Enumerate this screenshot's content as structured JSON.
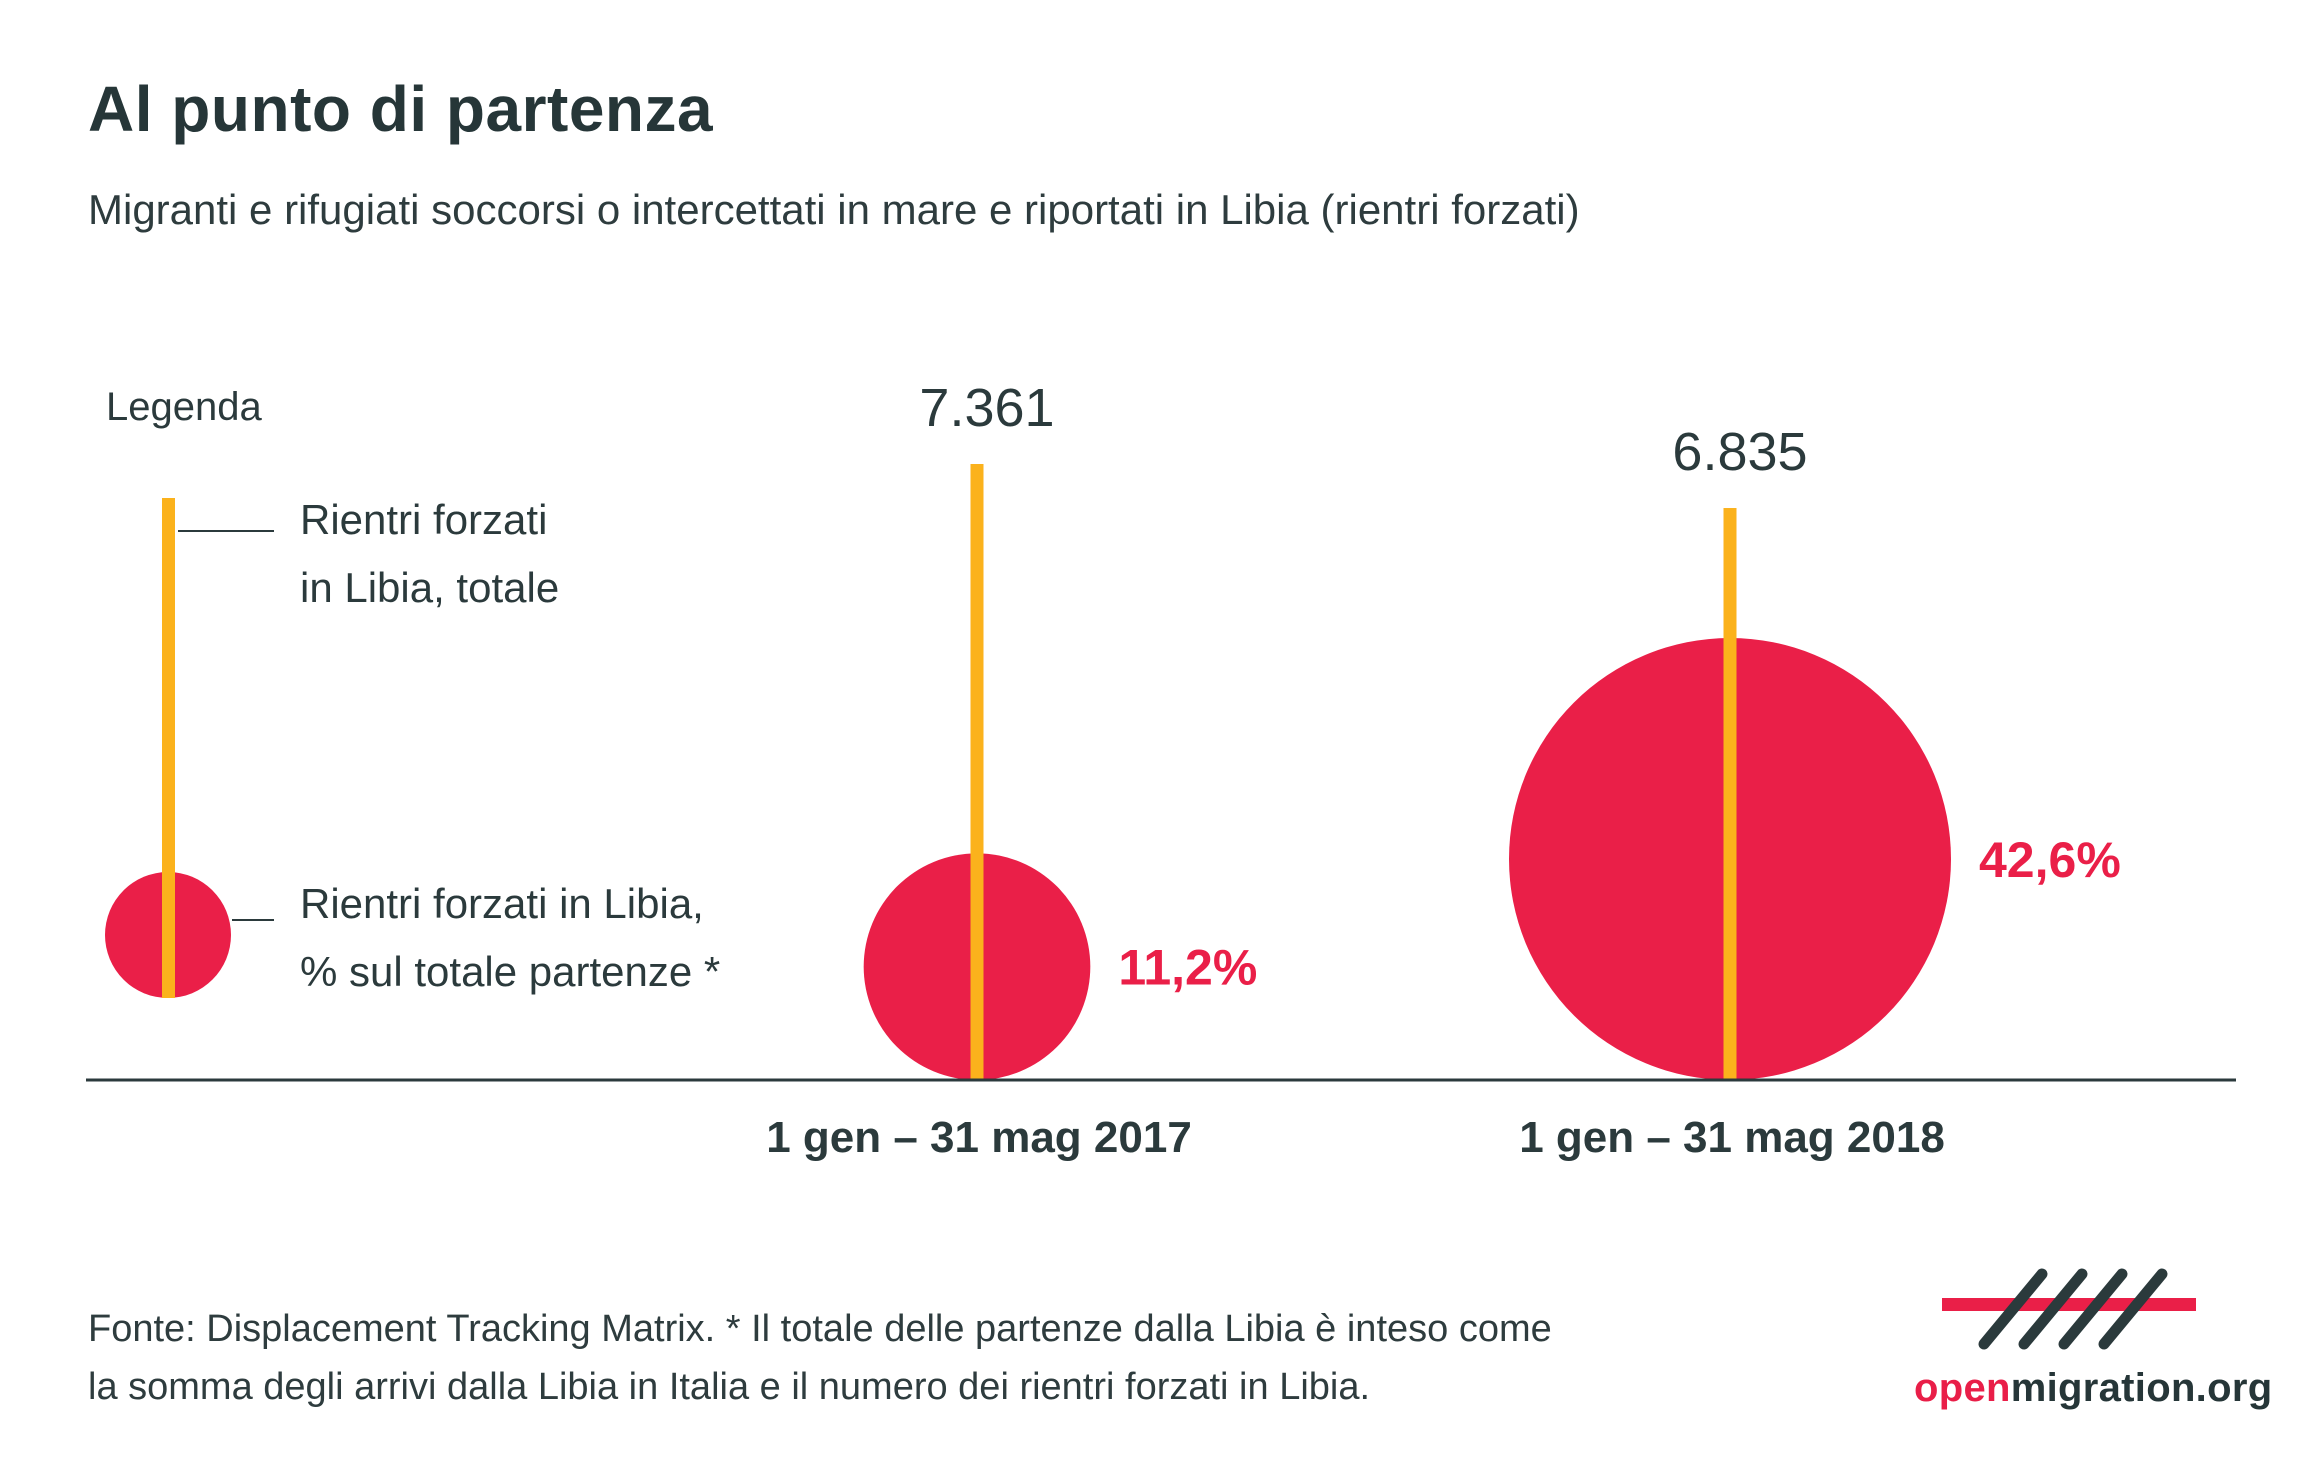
{
  "title": "Al punto di partenza",
  "subtitle": "Migranti e rifugiati soccorsi o intercettati in mare e riportati in Libia (rientri forzati)",
  "legend": {
    "heading": "Legenda",
    "line_label": [
      "Rientri forzati",
      "in Libia, totale"
    ],
    "circle_label": [
      "Rientri forzati in Libia,",
      "% sul totale partenze *"
    ]
  },
  "footer": {
    "lines": [
      "Fonte: Displacement Tracking Matrix. * Il totale delle partenze dalla Libia è inteso come",
      "la somma degli arrivi dalla Libia in Italia e il numero dei rientri forzati in Libia."
    ]
  },
  "brand": {
    "highlight": "open",
    "rest": "migration.org"
  },
  "colors": {
    "bar": "#fbb21c",
    "circle": "#ea1f48",
    "text": "#2b3a3c",
    "axis": "#2b3a3c"
  },
  "chart_data": {
    "type": "bar",
    "categories": [
      "1 gen – 31 mag 2017",
      "1 gen – 31 mag 2018"
    ],
    "series": [
      {
        "values": [
          7361,
          6835
        ],
        "labels": [
          "7.361",
          "6.835"
        ]
      },
      {
        "values": [
          11.2,
          42.6
        ],
        "labels": [
          "11,2%",
          "42,6%"
        ]
      }
    ],
    "encoding": "totals shown as line height, percentage shown as circle area"
  }
}
